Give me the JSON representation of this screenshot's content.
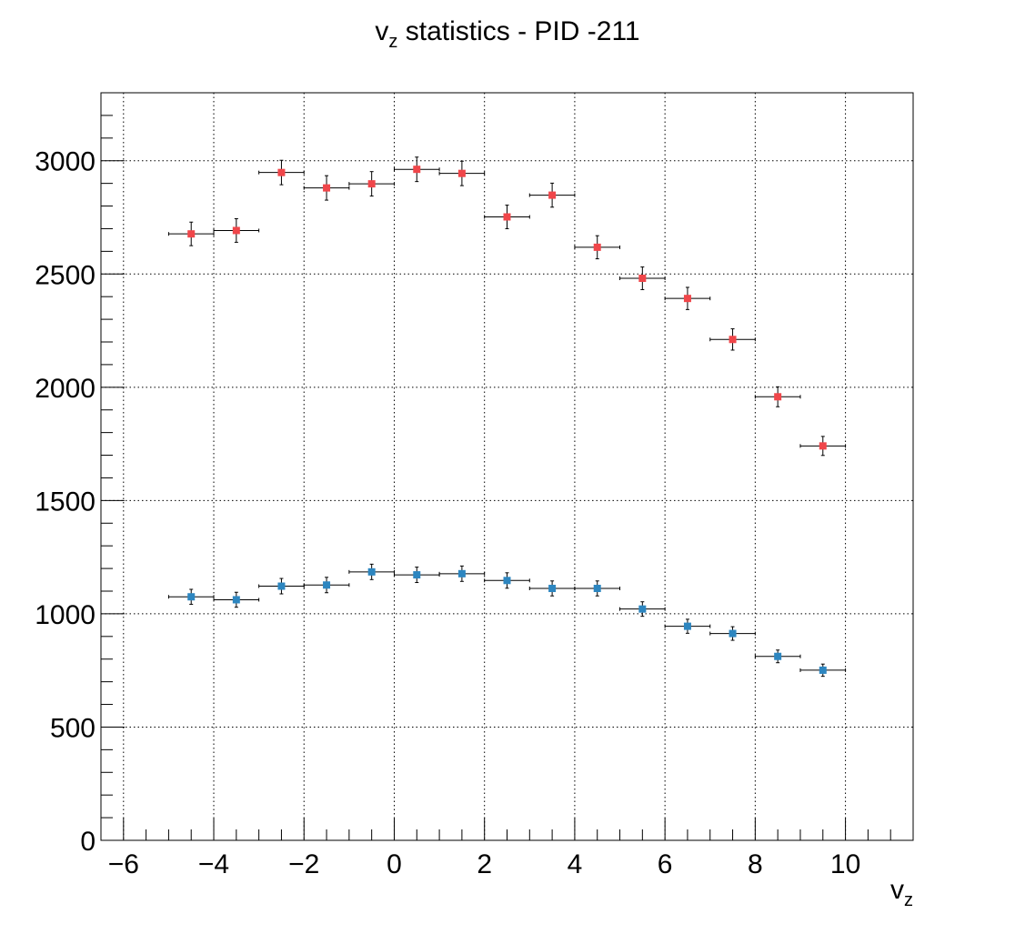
{
  "chart_data": {
    "type": "scatter",
    "title": {
      "base": "v",
      "sub": "z",
      "rest": " statistics - PID -211"
    },
    "xlabel": {
      "base": "v",
      "sub": "z"
    },
    "ylabel": "",
    "xlim": [
      -6.5,
      11.5
    ],
    "ylim": [
      0,
      3300
    ],
    "x_ticks": [
      -6,
      -4,
      -2,
      0,
      2,
      4,
      6,
      8,
      10
    ],
    "x_tick_labels": [
      "−6",
      "−4",
      "−2",
      "0",
      "2",
      "4",
      "6",
      "8",
      "10"
    ],
    "y_ticks": [
      0,
      500,
      1000,
      1500,
      2000,
      2500,
      3000
    ],
    "y_tick_labels": [
      "0",
      "500",
      "1000",
      "1500",
      "2000",
      "2500",
      "3000"
    ],
    "grid": true,
    "legend": "none",
    "bin_half_width": 0.5,
    "series": [
      {
        "color": "#f0464a",
        "x": [
          -4.5,
          -3.5,
          -2.5,
          -1.5,
          -0.5,
          0.5,
          1.5,
          2.5,
          3.5,
          4.5,
          5.5,
          6.5,
          7.5,
          8.5,
          9.5
        ],
        "y": [
          2677,
          2692,
          2948,
          2880,
          2898,
          2962,
          2944,
          2752,
          2848,
          2618,
          2481,
          2392,
          2211,
          1958,
          1741
        ],
        "yerr": [
          52,
          52,
          54,
          54,
          54,
          54,
          54,
          52,
          53,
          51,
          50,
          49,
          47,
          44,
          42
        ]
      },
      {
        "color": "#2d86c0",
        "x": [
          -4.5,
          -3.5,
          -2.5,
          -1.5,
          -0.5,
          0.5,
          1.5,
          2.5,
          3.5,
          4.5,
          5.5,
          6.5,
          7.5,
          8.5,
          9.5
        ],
        "y": [
          1075,
          1062,
          1122,
          1127,
          1185,
          1172,
          1177,
          1147,
          1112,
          1112,
          1021,
          945,
          913,
          812,
          751
        ],
        "yerr": [
          33,
          33,
          34,
          34,
          34,
          34,
          34,
          34,
          33,
          33,
          32,
          31,
          30,
          28,
          27
        ]
      }
    ]
  }
}
